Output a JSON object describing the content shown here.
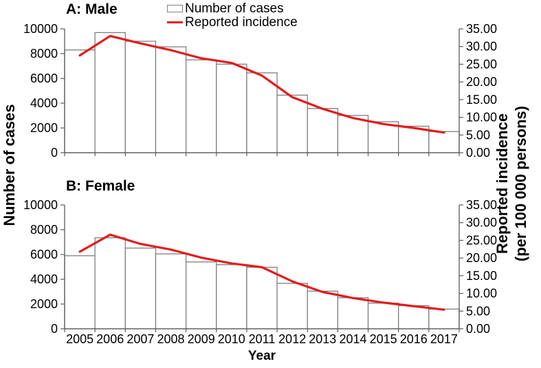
{
  "figure": {
    "x_axis_label": "Year",
    "left_y_axis_label": "Number of cases",
    "right_y_axis_label_line1": "Reported incidence",
    "right_y_axis_label_line2": "(per 100 000 persons)"
  },
  "legend": {
    "position": "top-center",
    "items": [
      {
        "label": "Number of cases",
        "swatch": "bar-outline-swatch"
      },
      {
        "label": "Reported incidence",
        "swatch": "red-line-swatch"
      }
    ]
  },
  "colors": {
    "incidence_line": "#e31b1c",
    "bar_fill": "#ffffff",
    "bar_border": "#7f7f7f",
    "axis": "#595959",
    "text": "#000000"
  },
  "chart_data": [
    {
      "type": "bar+line",
      "title": "A: Male",
      "categories": [
        "2005",
        "2006",
        "2007",
        "2008",
        "2009",
        "2010",
        "2011",
        "2012",
        "2013",
        "2014",
        "2015",
        "2016",
        "2017"
      ],
      "x_tick_labels_visible": false,
      "grid": false,
      "left_axis": {
        "range": [
          0,
          10000
        ],
        "tick_step": 2000,
        "tick_labels": [
          "0",
          "2000",
          "4000",
          "6000",
          "8000",
          "10000"
        ]
      },
      "right_axis": {
        "range": [
          0,
          35
        ],
        "tick_step": 5,
        "tick_labels": [
          "0.00",
          "5.00",
          "10.00",
          "15.00",
          "20.00",
          "25.00",
          "30.00",
          "35.00"
        ]
      },
      "series": [
        {
          "name": "Number of cases",
          "type": "bar",
          "axis": "left",
          "values": [
            8300,
            9700,
            9000,
            8550,
            7500,
            7150,
            6450,
            4650,
            3570,
            3010,
            2500,
            2140,
            1710
          ]
        },
        {
          "name": "Reported incidence",
          "type": "line",
          "axis": "right",
          "values": [
            27.5,
            33.0,
            30.9,
            29.0,
            26.7,
            25.4,
            21.8,
            15.7,
            12.4,
            9.8,
            8.1,
            7.0,
            5.7
          ]
        }
      ]
    },
    {
      "type": "bar+line",
      "title": "B: Female",
      "categories": [
        "2005",
        "2006",
        "2007",
        "2008",
        "2009",
        "2010",
        "2011",
        "2012",
        "2013",
        "2014",
        "2015",
        "2016",
        "2017"
      ],
      "x_tick_labels_visible": true,
      "grid": false,
      "left_axis": {
        "range": [
          0,
          10000
        ],
        "tick_step": 2000,
        "tick_labels": [
          "0",
          "2000",
          "4000",
          "6000",
          "8000",
          "10000"
        ]
      },
      "right_axis": {
        "range": [
          0,
          35
        ],
        "tick_step": 5,
        "tick_labels": [
          "0.00",
          "5.00",
          "10.00",
          "15.00",
          "20.00",
          "25.00",
          "30.00",
          "35.00"
        ]
      },
      "series": [
        {
          "name": "Number of cases",
          "type": "bar",
          "axis": "left",
          "values": [
            5900,
            7350,
            6520,
            6050,
            5400,
            5180,
            4970,
            3670,
            3040,
            2510,
            2070,
            1870,
            1590
          ]
        },
        {
          "name": "Reported incidence",
          "type": "line",
          "axis": "right",
          "values": [
            21.8,
            26.6,
            24.0,
            22.4,
            20.1,
            18.5,
            17.4,
            13.4,
            10.4,
            8.7,
            7.4,
            6.4,
            5.4
          ]
        }
      ]
    }
  ]
}
